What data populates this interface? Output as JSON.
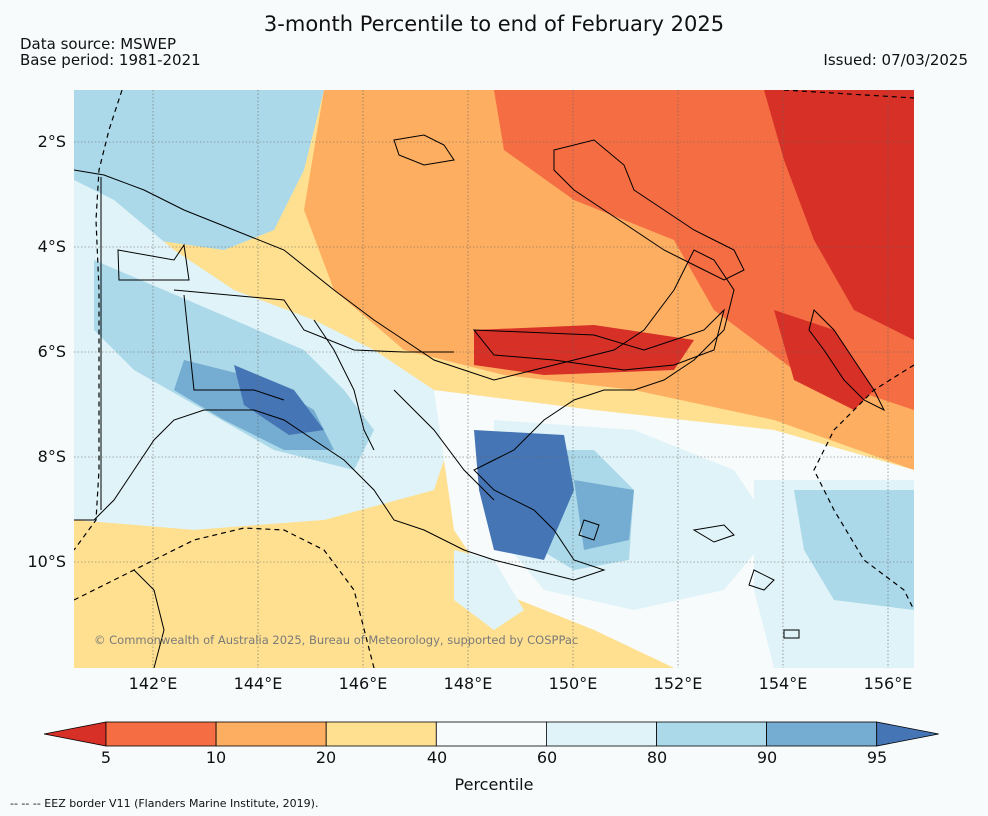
{
  "title": "3-month Percentile to end of February 2025",
  "data_source": "Data source: MSWEP",
  "base_period": "Base period: 1981-2021",
  "issued": "Issued: 07/03/2025",
  "copyright": "© Commonwealth of Australia 2025, Bureau of Meteorology, supported by COSPPac",
  "footnote": "--  --  -- EEZ border V11 (Flanders Marine Institute, 2019).",
  "lat_labels": [
    "2°S",
    "4°S",
    "6°S",
    "8°S",
    "10°S"
  ],
  "lon_labels": [
    "142°E",
    "144°E",
    "146°E",
    "148°E",
    "150°E",
    "152°E",
    "154°E",
    "156°E"
  ],
  "colorbar": {
    "label": "Percentile",
    "ticks": [
      "5",
      "10",
      "20",
      "40",
      "60",
      "80",
      "90",
      "95"
    ],
    "colors": [
      "#d73027",
      "#f46d43",
      "#fdae61",
      "#fee090",
      "#f7fbfc",
      "#e0f3f8",
      "#abd9e9",
      "#74add1",
      "#4575b4"
    ]
  }
}
